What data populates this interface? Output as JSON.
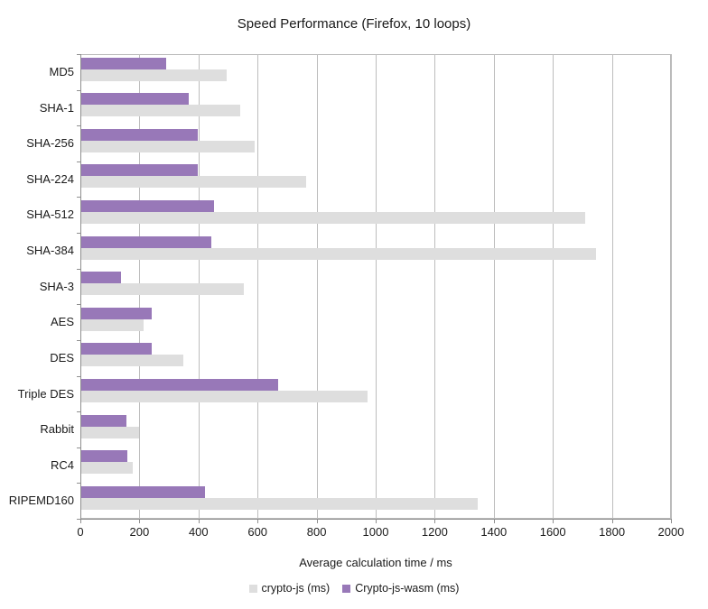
{
  "title": "Speed Performance (Firefox, 10 loops)",
  "chart_data": {
    "type": "bar",
    "orientation": "horizontal",
    "title": "Speed Performance (Firefox, 10 loops)",
    "xlabel": "Average calculation time / ms",
    "ylabel": "",
    "categories": [
      "MD5",
      "SHA-1",
      "SHA-256",
      "SHA-224",
      "SHA-512",
      "SHA-384",
      "SHA-3",
      "AES",
      "DES",
      "Triple DES",
      "Rabbit",
      "RC4",
      "RIPEMD160"
    ],
    "series": [
      {
        "name": "crypto-js (ms)",
        "color": "#dedede",
        "values": [
          495,
          541,
          591,
          765,
          1710,
          1747,
          552,
          214,
          348,
          971,
          199,
          178,
          1345
        ]
      },
      {
        "name": "Crypto-js-wasm (ms)",
        "color": "#9878b8",
        "values": [
          292,
          366,
          397,
          397,
          452,
          443,
          139,
          241,
          242,
          671,
          156,
          160,
          423
        ]
      }
    ],
    "xlim": [
      0,
      2000
    ],
    "xticks": [
      0,
      200,
      400,
      600,
      800,
      1000,
      1200,
      1400,
      1600,
      1800,
      2000
    ],
    "grid": true,
    "legend_position": "bottom",
    "colors": {
      "gridline": "#bdbdbd",
      "axis": "#8f8f8f",
      "text": "#1a1a1a",
      "background": "#ffffff"
    }
  }
}
